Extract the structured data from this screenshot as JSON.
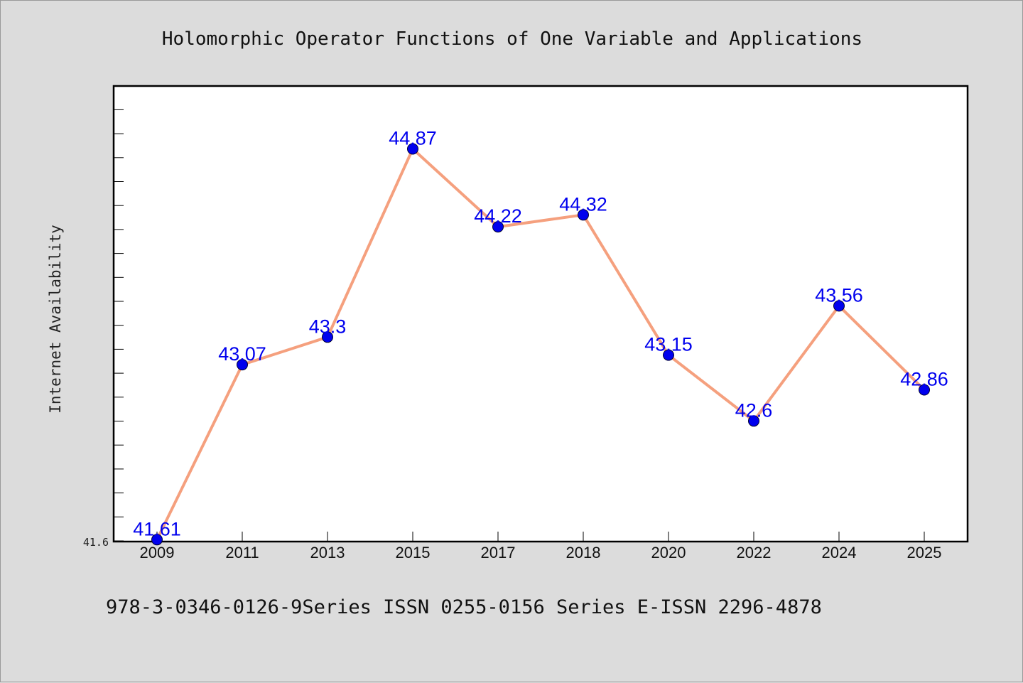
{
  "chart_data": {
    "type": "line",
    "title": "Holomorphic Operator Functions of One Variable and Applications",
    "ylabel": "Internet Availability",
    "xlabel": "",
    "footer": "978-3-0346-0126-9Series ISSN 0255-0156 Series E-ISSN 2296-4878",
    "categories": [
      "2009",
      "2011",
      "2013",
      "2015",
      "2017",
      "2018",
      "2020",
      "2022",
      "2024",
      "2025"
    ],
    "series": [
      {
        "values": [
          41.61,
          43.07,
          43.3,
          44.87,
          44.22,
          44.32,
          43.15,
          42.6,
          43.56,
          42.86
        ],
        "data_labels": [
          "41.61",
          "43.07",
          "43.3",
          "44.87",
          "44.22",
          "44.32",
          "43.15",
          "42.6",
          "43.56",
          "42.86"
        ]
      }
    ],
    "ylim": [
      41.6,
      45.4
    ],
    "y_tick_labels": [
      "41.6"
    ],
    "grid": false,
    "legend": "none",
    "colors": {
      "line": "#f5a07e",
      "marker": "#0000ee",
      "label": "#0000ee",
      "background": "#dcdcdc",
      "plot_background": "#ffffff"
    }
  }
}
